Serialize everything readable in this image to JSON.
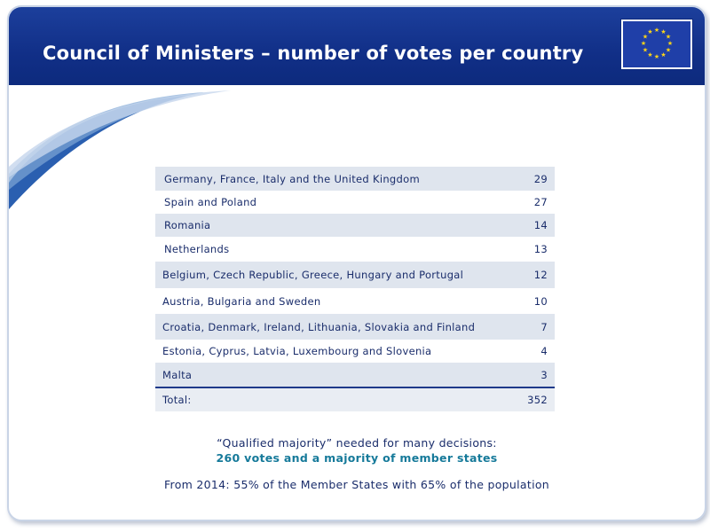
{
  "header": {
    "title": "Council of Ministers – number of votes per country",
    "logo_icon": "eu-flag-icon"
  },
  "colors": {
    "header_blue": "#112f87",
    "row_shade": "#dfe5ee",
    "text_navy": "#1a2d6b",
    "accent_teal": "#167a9a"
  },
  "table": {
    "rows": [
      {
        "country": "Germany, France, Italy and the United Kingdom",
        "votes": "29"
      },
      {
        "country": "Spain and Poland",
        "votes": "27"
      },
      {
        "country": "Romania",
        "votes": "14"
      },
      {
        "country": "Netherlands",
        "votes": "13"
      },
      {
        "country": "Belgium, Czech Republic, Greece, Hungary and Portugal",
        "votes": "12"
      },
      {
        "country": "Austria, Bulgaria and Sweden",
        "votes": "10"
      },
      {
        "country": "Croatia, Denmark, Ireland, Lithuania, Slovakia and Finland",
        "votes": "7"
      },
      {
        "country": "Estonia, Cyprus, Latvia, Luxembourg and Slovenia",
        "votes": "4"
      },
      {
        "country": "Malta",
        "votes": "3"
      }
    ],
    "total_label": "Total:",
    "total_value": "352"
  },
  "notes": {
    "qualified_majority": "“Qualified majority” needed for many decisions:",
    "majority_detail": "260 votes and a majority of member states",
    "from_2014": "From 2014: 55% of the Member States with 65% of the population"
  }
}
